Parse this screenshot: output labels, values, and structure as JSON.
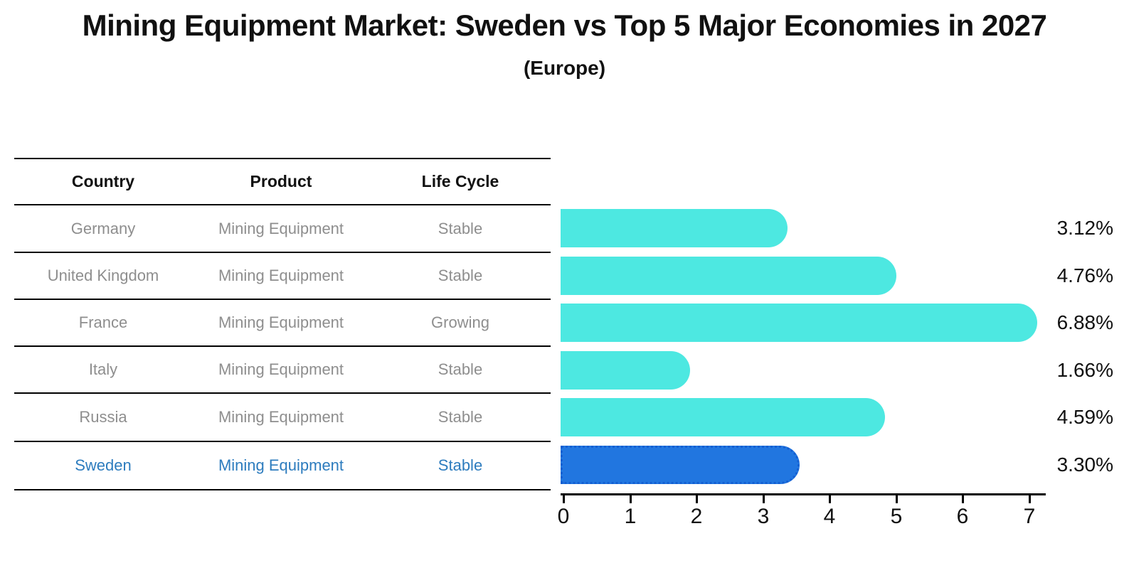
{
  "title": "Mining Equipment Market: Sweden vs Top 5 Major Economies in 2027",
  "subtitle": "(Europe)",
  "table": {
    "headers": [
      "Country",
      "Product",
      "Life Cycle"
    ],
    "rows": [
      {
        "country": "Germany",
        "product": "Mining Equipment",
        "life_cycle": "Stable"
      },
      {
        "country": "United Kingdom",
        "product": "Mining Equipment",
        "life_cycle": "Stable"
      },
      {
        "country": "France",
        "product": "Mining Equipment",
        "life_cycle": "Growing"
      },
      {
        "country": "Italy",
        "product": "Mining Equipment",
        "life_cycle": "Stable"
      },
      {
        "country": "Russia",
        "product": "Mining Equipment",
        "life_cycle": "Stable"
      },
      {
        "country": "Sweden",
        "product": "Mining Equipment",
        "life_cycle": "Stable"
      }
    ]
  },
  "chart_data": {
    "type": "bar",
    "orientation": "horizontal",
    "categories": [
      "Germany",
      "United Kingdom",
      "France",
      "Italy",
      "Russia",
      "Sweden"
    ],
    "values": [
      3.12,
      4.76,
      6.88,
      1.66,
      4.59,
      3.3
    ],
    "value_labels": [
      "3.12%",
      "4.76%",
      "6.88%",
      "1.66%",
      "4.59%",
      "3.30%"
    ],
    "x_ticks": [
      "0",
      "1",
      "2",
      "3",
      "4",
      "5",
      "6",
      "7"
    ],
    "xlim": [
      0,
      7.3
    ],
    "xlabel": "",
    "ylabel": "",
    "grid": false,
    "legend": false,
    "bar_color": "#4de8e1",
    "highlight_index": 5,
    "highlight_fill": "#2176e0",
    "highlight_border": "#145fd2"
  },
  "colors": {
    "title_text": "#111111",
    "table_text": "#8e8e8e",
    "highlight_text": "#2d7cbe",
    "axis": "#000000",
    "background": "#ffffff"
  }
}
